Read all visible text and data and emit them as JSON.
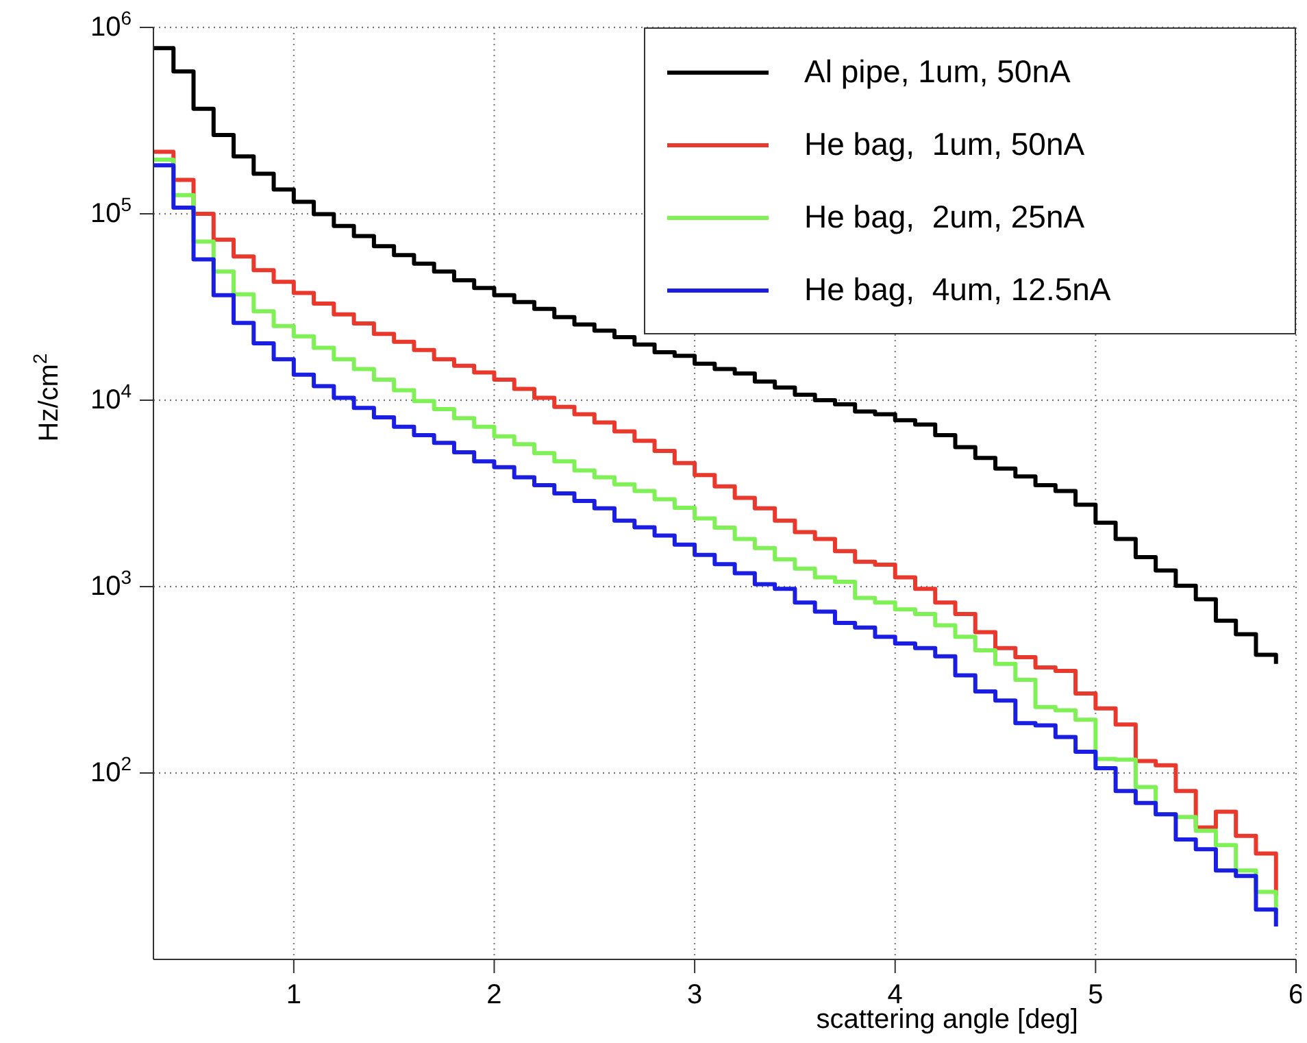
{
  "chart_data": {
    "type": "step",
    "xlabel": "scattering angle [deg]",
    "ylabel": "Hz/cm$^{2}$",
    "log": "y",
    "grid": true,
    "legend": "top right",
    "x": [
      0.3,
      0.4,
      0.5,
      0.6,
      0.7,
      0.8,
      0.9,
      1.0,
      1.1,
      1.2,
      1.3,
      1.4,
      1.5,
      1.6,
      1.7,
      1.8,
      1.9,
      2.0,
      2.1,
      2.2,
      2.3,
      2.4,
      2.5,
      2.6,
      2.7,
      2.8,
      2.9,
      3.0,
      3.1,
      3.2,
      3.3,
      3.4,
      3.5,
      3.6,
      3.7,
      3.8,
      3.9,
      4.0,
      4.1,
      4.2,
      4.3,
      4.4,
      4.5,
      4.6,
      4.7,
      4.8,
      4.9,
      5.0,
      5.1,
      5.2,
      5.3,
      5.4,
      5.5,
      5.6,
      5.7,
      5.8,
      5.9
    ],
    "xlim": [
      0.3,
      6
    ],
    "xticks": [
      1,
      2,
      3,
      4,
      5,
      6
    ],
    "ylim": [
      10,
      1000000
    ],
    "yticks": [
      {
        "value": 100,
        "label": "10$^{2}$"
      },
      {
        "value": 1000,
        "label": "10$^{3}$"
      },
      {
        "value": 10000,
        "label": "10$^{4}$"
      },
      {
        "value": 100000,
        "label": "10$^{5}$"
      },
      {
        "value": 1000000,
        "label": "10$^{6}$"
      }
    ],
    "series": [
      {
        "name": "Al pipe, 1um, 50nA",
        "color": "#000000",
        "values": [
          774000,
          580000,
          366000,
          265000,
          203000,
          164000,
          135000,
          116000,
          99600,
          86000,
          76000,
          67000,
          60000,
          54000,
          49000,
          44000,
          40000,
          36600,
          33600,
          30900,
          27900,
          25500,
          23600,
          21800,
          19900,
          18100,
          17300,
          15700,
          14700,
          13900,
          12600,
          11700,
          10700,
          10000,
          9500,
          8700,
          8400,
          7800,
          7400,
          6500,
          5600,
          4900,
          4300,
          3900,
          3500,
          3260,
          2750,
          2200,
          1800,
          1440,
          1220,
          1010,
          855,
          656,
          555,
          431,
          385
        ]
      },
      {
        "name": "He bag,  1um, 50nA",
        "color": "#e8392c",
        "values": [
          215000,
          152000,
          100000,
          72600,
          59000,
          49800,
          43200,
          37600,
          33000,
          28900,
          25800,
          22700,
          20600,
          18600,
          16600,
          15300,
          14100,
          12900,
          11500,
          10300,
          9200,
          8400,
          7600,
          6800,
          6050,
          5350,
          4600,
          3970,
          3450,
          2990,
          2630,
          2260,
          1960,
          1800,
          1550,
          1360,
          1310,
          1120,
          973,
          821,
          713,
          570,
          468,
          418,
          368,
          353,
          267,
          222,
          182,
          116,
          110,
          80,
          51,
          62,
          46,
          37,
          22
        ]
      },
      {
        "name": "He bag,  2um, 25nA",
        "color": "#7ff056",
        "values": [
          195000,
          126000,
          71000,
          49000,
          37000,
          30000,
          25000,
          22000,
          19100,
          16600,
          14700,
          12900,
          11300,
          9900,
          8950,
          8000,
          7200,
          6400,
          5800,
          5200,
          4700,
          4200,
          3860,
          3540,
          3260,
          2940,
          2650,
          2320,
          2070,
          1800,
          1610,
          1400,
          1250,
          1120,
          1060,
          869,
          821,
          755,
          713,
          620,
          538,
          455,
          385,
          316,
          226,
          217,
          193,
          119,
          118,
          84,
          60,
          58,
          49,
          41,
          30,
          23,
          17.5
        ]
      },
      {
        "name": "He bag,  4um, 12.5nA",
        "color": "#1a1ee0",
        "values": [
          182000,
          108000,
          57000,
          36600,
          26000,
          20200,
          16600,
          13700,
          11900,
          10300,
          9100,
          8100,
          7200,
          6500,
          5900,
          5250,
          4700,
          4370,
          3860,
          3500,
          3160,
          2880,
          2630,
          2260,
          2080,
          1880,
          1680,
          1480,
          1320,
          1180,
          1030,
          973,
          821,
          734,
          638,
          603,
          538,
          495,
          468,
          423,
          334,
          274,
          245,
          185,
          180,
          156,
          130,
          106,
          80,
          69,
          60,
          44,
          39,
          30,
          28,
          18.5,
          15
        ]
      }
    ]
  }
}
